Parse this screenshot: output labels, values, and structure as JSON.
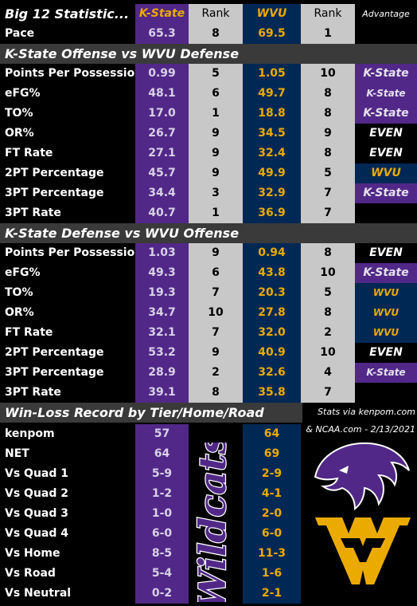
{
  "header": {
    "title": "Big 12 Statistic...",
    "team1": "K-State",
    "rank1": "Rank",
    "team2": "WVU",
    "rank2": "Rank",
    "advantage": "Advantage"
  },
  "pace": {
    "label": "Pace",
    "ks": "65.3",
    "ks_rank": "8",
    "wvu": "69.5",
    "wvu_rank": "1",
    "adv": ""
  },
  "offense": {
    "title": "K-State Offense vs WVU Defense",
    "rows": [
      {
        "label": "Points Per Possession",
        "ks": "0.99",
        "ks_rank": "5",
        "wvu": "1.05",
        "wvu_rank": "10",
        "adv": "K-State"
      },
      {
        "label": "eFG%",
        "ks": "48.1",
        "ks_rank": "6",
        "wvu": "49.7",
        "wvu_rank": "8",
        "adv": "K-State"
      },
      {
        "label": "TO%",
        "ks": "17.0",
        "ks_rank": "1",
        "wvu": "18.8",
        "wvu_rank": "8",
        "adv": "K-State"
      },
      {
        "label": "OR%",
        "ks": "26.7",
        "ks_rank": "9",
        "wvu": "34.5",
        "wvu_rank": "9",
        "adv": "EVEN"
      },
      {
        "label": "FT Rate",
        "ks": "27.1",
        "ks_rank": "9",
        "wvu": "32.4",
        "wvu_rank": "8",
        "adv": "EVEN"
      },
      {
        "label": "2PT Percentage",
        "ks": "45.7",
        "ks_rank": "9",
        "wvu": "49.9",
        "wvu_rank": "5",
        "adv": "WVU"
      },
      {
        "label": "3PT Percentage",
        "ks": "34.4",
        "ks_rank": "3",
        "wvu": "32.9",
        "wvu_rank": "7",
        "adv": "K-State"
      },
      {
        "label": "3PT Rate",
        "ks": "40.7",
        "ks_rank": "1",
        "wvu": "36.9",
        "wvu_rank": "7",
        "adv": ""
      }
    ]
  },
  "defense": {
    "title": "K-State Defense vs WVU Offense",
    "rows": [
      {
        "label": "Points Per Possession",
        "ks": "1.03",
        "ks_rank": "9",
        "wvu": "0.94",
        "wvu_rank": "8",
        "adv": "EVEN"
      },
      {
        "label": "eFG%",
        "ks": "49.3",
        "ks_rank": "6",
        "wvu": "43.8",
        "wvu_rank": "10",
        "adv": "K-State"
      },
      {
        "label": "TO%",
        "ks": "19.3",
        "ks_rank": "7",
        "wvu": "20.3",
        "wvu_rank": "5",
        "adv": "WVU"
      },
      {
        "label": "OR%",
        "ks": "34.7",
        "ks_rank": "10",
        "wvu": "27.8",
        "wvu_rank": "8",
        "adv": "WVU"
      },
      {
        "label": "FT Rate",
        "ks": "32.1",
        "ks_rank": "7",
        "wvu": "32.0",
        "wvu_rank": "2",
        "adv": "WVU"
      },
      {
        "label": "2PT Percentage",
        "ks": "53.2",
        "ks_rank": "9",
        "wvu": "40.9",
        "wvu_rank": "10",
        "adv": "EVEN"
      },
      {
        "label": "3PT Percentage",
        "ks": "28.9",
        "ks_rank": "2",
        "wvu": "32.6",
        "wvu_rank": "4",
        "adv": "K-State"
      },
      {
        "label": "3PT Rate",
        "ks": "39.1",
        "ks_rank": "8",
        "wvu": "35.8",
        "wvu_rank": "7",
        "adv": ""
      }
    ]
  },
  "record": {
    "title": "Win-Loss Record by Tier/Home/Road",
    "credit1": "Stats via kenpom.com",
    "credit2": "& NCAA.com - 2/13/2021",
    "wordmark": "Wildcats",
    "rows": [
      {
        "label": "kenpom",
        "ks": "57",
        "wvu": "64"
      },
      {
        "label": "NET",
        "ks": "64",
        "wvu": "69"
      },
      {
        "label": "Vs Quad 1",
        "ks": "5-9",
        "wvu": "2-9"
      },
      {
        "label": "Vs Quad 2",
        "ks": "1-2",
        "wvu": "4-1"
      },
      {
        "label": "Vs Quad 3",
        "ks": "1-0",
        "wvu": "2-0"
      },
      {
        "label": "Vs Quad 4",
        "ks": "6-0",
        "wvu": "6-0"
      },
      {
        "label": "Vs Home",
        "ks": "8-5",
        "wvu": "11-3"
      },
      {
        "label": "Vs Road",
        "ks": "5-4",
        "wvu": "1-6"
      },
      {
        "label": "Vs Neutral",
        "ks": "0-2",
        "wvu": "2-1"
      }
    ]
  },
  "colors": {
    "kstate_purple": "#512888",
    "wvu_blue": "#002855",
    "wvu_gold": "#eaaa00",
    "rank_gray": "#c8c8c8"
  }
}
